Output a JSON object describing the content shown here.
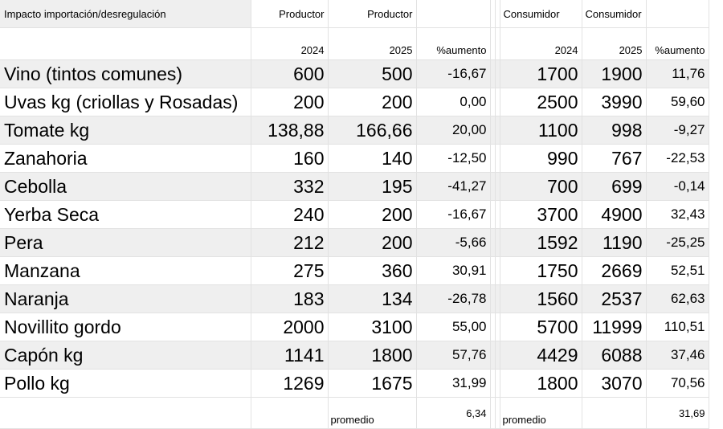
{
  "sheet": {
    "title": "Impacto importación/desregulación",
    "header": {
      "productor_a": "Productor",
      "productor_b": "Productor",
      "consumidor_a": "Consumidor",
      "consumidor_b": "Consumidor",
      "year_2024_p": "2024",
      "year_2025_p": "2025",
      "pct_p": "%aumento",
      "year_2024_c": "2024",
      "year_2025_c": "2025",
      "pct_c": "%aumento"
    },
    "rows": [
      {
        "name": "Vino (tintos comunes)",
        "p2024": "600",
        "p2025": "500",
        "ppct": "-16,67",
        "c2024": "1700",
        "c2025": "1900",
        "cpct": "11,76"
      },
      {
        "name": "Uvas kg (criollas y Rosadas)",
        "p2024": "200",
        "p2025": "200",
        "ppct": "0,00",
        "c2024": "2500",
        "c2025": "3990",
        "cpct": "59,60"
      },
      {
        "name": "Tomate kg",
        "p2024": "138,88",
        "p2025": "166,66",
        "ppct": "20,00",
        "c2024": "1100",
        "c2025": "998",
        "cpct": "-9,27"
      },
      {
        "name": "Zanahoria",
        "p2024": "160",
        "p2025": "140",
        "ppct": "-12,50",
        "c2024": "990",
        "c2025": "767",
        "cpct": "-22,53"
      },
      {
        "name": "Cebolla",
        "p2024": "332",
        "p2025": "195",
        "ppct": "-41,27",
        "c2024": "700",
        "c2025": "699",
        "cpct": "-0,14"
      },
      {
        "name": "Yerba Seca",
        "p2024": "240",
        "p2025": "200",
        "ppct": "-16,67",
        "c2024": "3700",
        "c2025": "4900",
        "cpct": "32,43"
      },
      {
        "name": "Pera",
        "p2024": "212",
        "p2025": "200",
        "ppct": "-5,66",
        "c2024": "1592",
        "c2025": "1190",
        "cpct": "-25,25"
      },
      {
        "name": "Manzana",
        "p2024": "275",
        "p2025": "360",
        "ppct": "30,91",
        "c2024": "1750",
        "c2025": "2669",
        "cpct": "52,51"
      },
      {
        "name": "Naranja",
        "p2024": "183",
        "p2025": "134",
        "ppct": "-26,78",
        "c2024": "1560",
        "c2025": "2537",
        "cpct": "62,63"
      },
      {
        "name": "Novillito gordo",
        "p2024": "2000",
        "p2025": "3100",
        "ppct": "55,00",
        "c2024": "5700",
        "c2025": "11999",
        "cpct": "110,51"
      },
      {
        "name": "Capón kg",
        "p2024": "1141",
        "p2025": "1800",
        "ppct": "57,76",
        "c2024": "4429",
        "c2025": "6088",
        "cpct": "37,46"
      },
      {
        "name": "Pollo kg",
        "p2024": "1269",
        "p2025": "1675",
        "ppct": "31,99",
        "c2024": "1800",
        "c2025": "3070",
        "cpct": "70,56"
      }
    ],
    "footer": {
      "promedio_label_p": "promedio",
      "promedio_value_p": "6,34",
      "promedio_label_c": "promedio",
      "promedio_value_c": "31,69"
    }
  }
}
